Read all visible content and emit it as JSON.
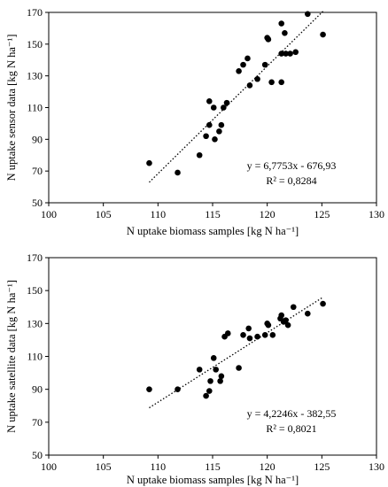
{
  "chart_data": [
    {
      "type": "scatter",
      "title": "",
      "xlabel": "N uptake biomass samples [kg N ha⁻¹]",
      "ylabel": "N uptake sensor data [kg N ha⁻¹]",
      "xlim": [
        100,
        130
      ],
      "ylim": [
        50,
        170
      ],
      "xticks": [
        "100",
        "105",
        "110",
        "115",
        "120",
        "125",
        "130"
      ],
      "yticks": [
        "50",
        "70",
        "90",
        "110",
        "130",
        "150",
        "170"
      ],
      "grid": false,
      "points": [
        {
          "x": 109.2,
          "y": 75
        },
        {
          "x": 111.8,
          "y": 69
        },
        {
          "x": 113.8,
          "y": 80
        },
        {
          "x": 114.4,
          "y": 92
        },
        {
          "x": 114.7,
          "y": 99
        },
        {
          "x": 114.7,
          "y": 114
        },
        {
          "x": 115.1,
          "y": 110
        },
        {
          "x": 115.2,
          "y": 90
        },
        {
          "x": 115.6,
          "y": 95
        },
        {
          "x": 115.8,
          "y": 99
        },
        {
          "x": 116.0,
          "y": 110
        },
        {
          "x": 116.3,
          "y": 113
        },
        {
          "x": 117.4,
          "y": 133
        },
        {
          "x": 117.8,
          "y": 137
        },
        {
          "x": 118.2,
          "y": 141
        },
        {
          "x": 118.4,
          "y": 124
        },
        {
          "x": 119.1,
          "y": 128
        },
        {
          "x": 119.8,
          "y": 137
        },
        {
          "x": 120.0,
          "y": 154
        },
        {
          "x": 120.1,
          "y": 153
        },
        {
          "x": 120.4,
          "y": 126
        },
        {
          "x": 121.3,
          "y": 163
        },
        {
          "x": 121.3,
          "y": 144
        },
        {
          "x": 121.3,
          "y": 126
        },
        {
          "x": 121.6,
          "y": 157
        },
        {
          "x": 121.7,
          "y": 144
        },
        {
          "x": 122.1,
          "y": 144
        },
        {
          "x": 122.6,
          "y": 145
        },
        {
          "x": 123.7,
          "y": 169
        },
        {
          "x": 125.1,
          "y": 156
        }
      ],
      "trendline": {
        "slope": 6.7753,
        "intercept": -676.93,
        "x_range": [
          109.2,
          125.1
        ],
        "style": "dotted"
      },
      "equation_text": "y = 6,7753x - 676,93",
      "r2_text": "R² = 0,8284"
    },
    {
      "type": "scatter",
      "title": "",
      "xlabel": "N uptake biomass samples [kg N ha⁻¹]",
      "ylabel": "N uptake satellite data [kg N ha⁻¹]",
      "xlim": [
        100,
        130
      ],
      "ylim": [
        50,
        170
      ],
      "xticks": [
        "100",
        "105",
        "110",
        "115",
        "120",
        "125",
        "130"
      ],
      "yticks": [
        "50",
        "70",
        "90",
        "110",
        "130",
        "150",
        "170"
      ],
      "grid": false,
      "points": [
        {
          "x": 109.2,
          "y": 90
        },
        {
          "x": 111.8,
          "y": 90
        },
        {
          "x": 113.8,
          "y": 102
        },
        {
          "x": 114.4,
          "y": 86
        },
        {
          "x": 114.7,
          "y": 89
        },
        {
          "x": 114.8,
          "y": 95
        },
        {
          "x": 115.1,
          "y": 109
        },
        {
          "x": 115.3,
          "y": 102
        },
        {
          "x": 115.7,
          "y": 95
        },
        {
          "x": 115.8,
          "y": 98
        },
        {
          "x": 116.1,
          "y": 122
        },
        {
          "x": 116.4,
          "y": 124
        },
        {
          "x": 117.4,
          "y": 103
        },
        {
          "x": 117.8,
          "y": 123
        },
        {
          "x": 118.3,
          "y": 127
        },
        {
          "x": 118.4,
          "y": 121
        },
        {
          "x": 119.1,
          "y": 122
        },
        {
          "x": 119.8,
          "y": 123
        },
        {
          "x": 120.0,
          "y": 130
        },
        {
          "x": 120.1,
          "y": 129
        },
        {
          "x": 120.5,
          "y": 123
        },
        {
          "x": 121.2,
          "y": 133
        },
        {
          "x": 121.3,
          "y": 135
        },
        {
          "x": 121.5,
          "y": 131
        },
        {
          "x": 121.7,
          "y": 132
        },
        {
          "x": 121.9,
          "y": 129
        },
        {
          "x": 122.4,
          "y": 140
        },
        {
          "x": 123.7,
          "y": 136
        },
        {
          "x": 125.1,
          "y": 142
        }
      ],
      "trendline": {
        "slope": 4.2246,
        "intercept": -382.55,
        "x_range": [
          109.2,
          125.1
        ],
        "style": "dotted"
      },
      "equation_text": "y = 4,2246x - 382,55",
      "r2_text": "R² = 0,8021"
    }
  ]
}
